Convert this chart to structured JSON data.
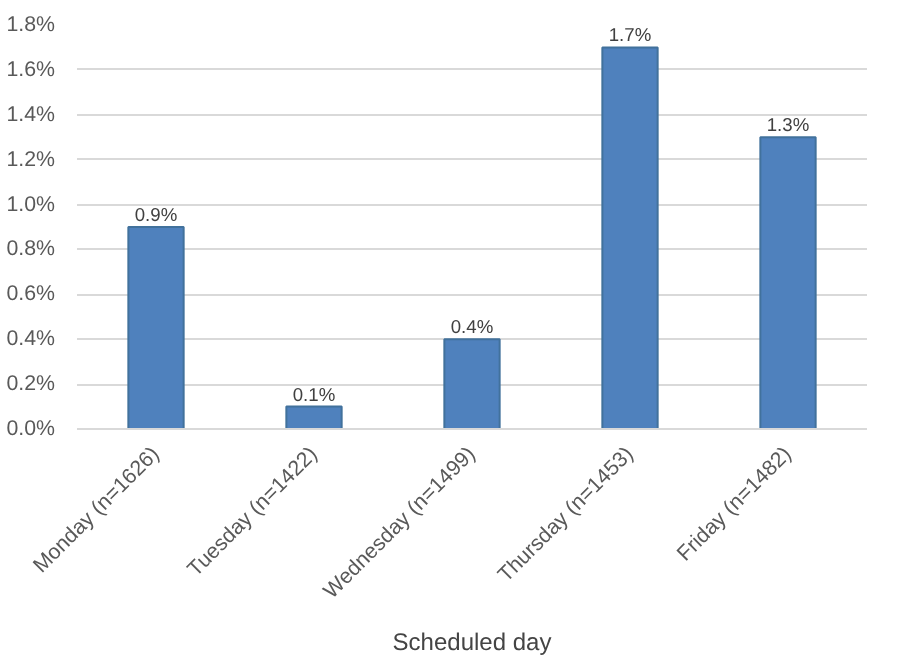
{
  "chart_data": {
    "type": "bar",
    "xlabel": "Scheduled day",
    "categories": [
      "Monday (n=1626)",
      "Tuesday (n=1422)",
      "Wednesday (n=1499)",
      "Thursday (n=1453)",
      "Friday (n=1482)"
    ],
    "values": [
      0.9,
      0.1,
      0.4,
      1.7,
      1.3
    ],
    "value_labels": [
      "0.9%",
      "0.1%",
      "0.4%",
      "1.7%",
      "1.3%"
    ],
    "color": "#4f81bd",
    "ylim": [
      0,
      1.8
    ],
    "yticks": [
      {
        "value": 0,
        "label": "0.0%"
      },
      {
        "value": 0.2,
        "label": "0.2%"
      },
      {
        "value": 0.4,
        "label": "0.4%"
      },
      {
        "value": 0.6,
        "label": "0.6%"
      },
      {
        "value": 0.8,
        "label": "0.8%"
      },
      {
        "value": 1.0,
        "label": "1.0%"
      },
      {
        "value": 1.2,
        "label": "1.2%"
      },
      {
        "value": 1.4,
        "label": "1.4%"
      },
      {
        "value": 1.6,
        "label": "1.6%"
      },
      {
        "value": 1.8,
        "label": "1.8%"
      }
    ],
    "grid": "y"
  }
}
